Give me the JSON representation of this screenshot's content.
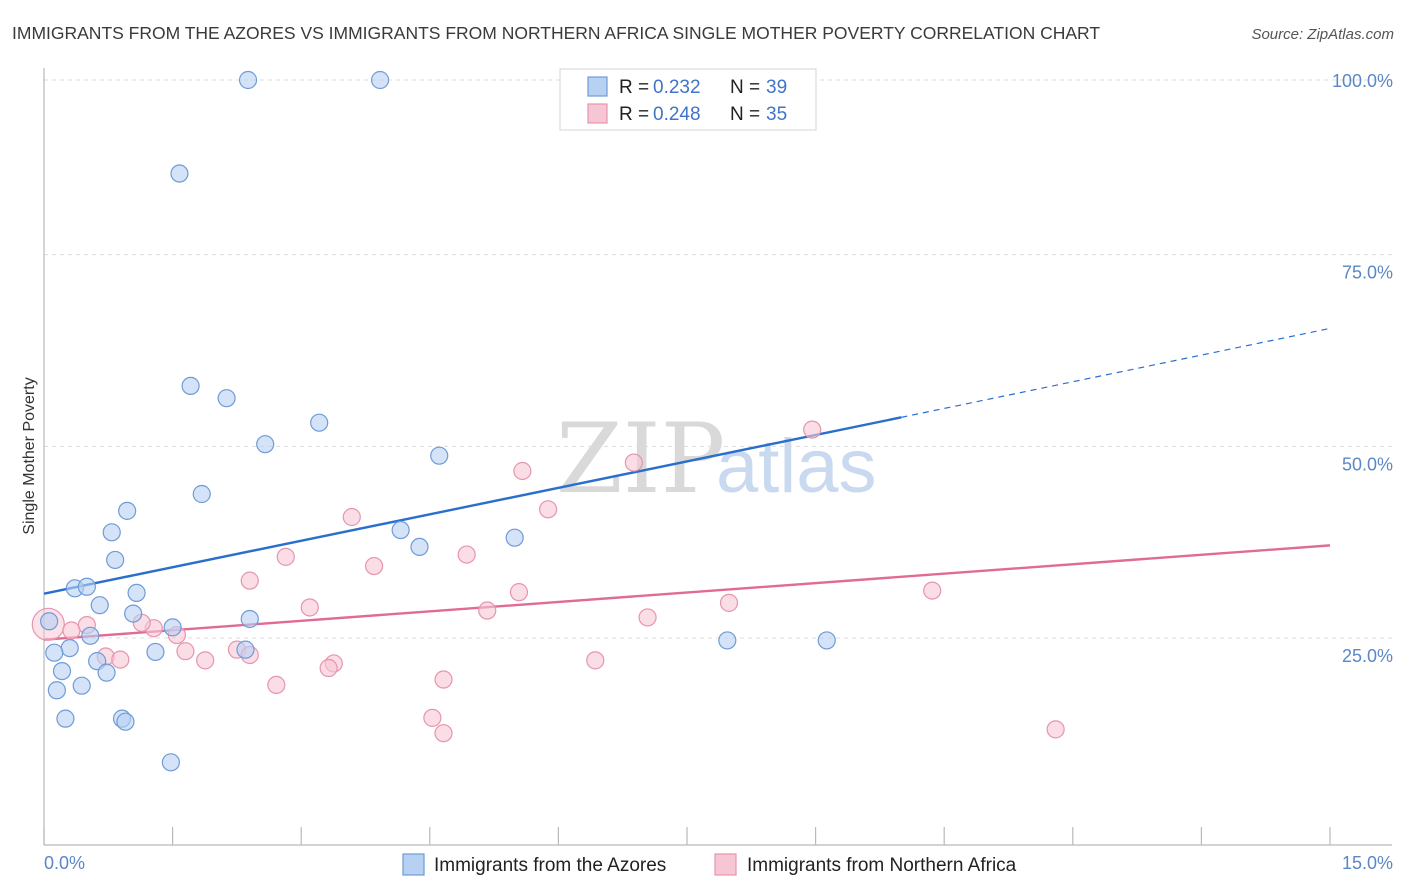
{
  "title": "IMMIGRANTS FROM THE AZORES VS IMMIGRANTS FROM NORTHERN AFRICA SINGLE MOTHER POVERTY CORRELATION CHART",
  "source": "Source: ZipAtlas.com",
  "watermark": {
    "zip": "ZIP",
    "atlas": "atlas"
  },
  "colors": {
    "azores_fill": "#b7d1f2",
    "azores_stroke": "#6f9bd8",
    "azores_line": "#2a6fcc",
    "africa_fill": "#f7c6d4",
    "africa_stroke": "#e794b0",
    "africa_line": "#e06b97"
  },
  "legend": {
    "rows": [
      {
        "r_label": "R = ",
        "r_value": "0.232",
        "n_label": "N = ",
        "n_value": "39"
      },
      {
        "r_label": "R = ",
        "r_value": "0.248",
        "n_label": "N = ",
        "n_value": "35"
      }
    ]
  },
  "chart_data": {
    "type": "scatter",
    "title": "IMMIGRANTS FROM THE AZORES VS IMMIGRANTS FROM NORTHERN AFRICA SINGLE MOTHER POVERTY CORRELATION CHART",
    "xlabel": "",
    "ylabel": "Single Mother Poverty",
    "xlim": [
      0,
      15
    ],
    "ylim": [
      2,
      102
    ],
    "x_tick_labels": [
      "0.0%",
      "15.0%"
    ],
    "y_ticks": [
      25,
      50,
      75,
      100
    ],
    "y_tick_labels": [
      "25.0%",
      "50.0%",
      "75.0%",
      "100.0%"
    ],
    "series": [
      {
        "name": "Immigrants from the Azores",
        "points": [
          [
            2.38,
            100.0
          ],
          [
            3.92,
            100.0
          ],
          [
            1.58,
            87.8
          ],
          [
            1.71,
            60.1
          ],
          [
            2.13,
            58.5
          ],
          [
            3.21,
            55.3
          ],
          [
            2.58,
            52.5
          ],
          [
            4.61,
            51.0
          ],
          [
            1.84,
            46.0
          ],
          [
            0.97,
            43.8
          ],
          [
            0.79,
            41.0
          ],
          [
            4.16,
            41.3
          ],
          [
            5.49,
            40.3
          ],
          [
            4.38,
            39.1
          ],
          [
            0.83,
            37.4
          ],
          [
            0.36,
            33.7
          ],
          [
            0.5,
            33.9
          ],
          [
            1.08,
            33.1
          ],
          [
            0.65,
            31.5
          ],
          [
            1.04,
            30.4
          ],
          [
            2.4,
            29.7
          ],
          [
            0.06,
            29.4
          ],
          [
            1.5,
            28.6
          ],
          [
            0.54,
            27.5
          ],
          [
            0.3,
            25.9
          ],
          [
            2.35,
            25.7
          ],
          [
            0.12,
            25.3
          ],
          [
            1.3,
            25.4
          ],
          [
            0.62,
            24.2
          ],
          [
            0.73,
            22.7
          ],
          [
            0.21,
            22.9
          ],
          [
            7.97,
            26.9
          ],
          [
            9.13,
            26.9
          ],
          [
            0.44,
            21.0
          ],
          [
            0.15,
            20.4
          ],
          [
            0.25,
            16.7
          ],
          [
            0.91,
            16.7
          ],
          [
            0.95,
            16.3
          ],
          [
            1.48,
            11.0
          ]
        ],
        "trend": {
          "x0": 0,
          "y0": 33.0,
          "x1": 10.0,
          "y1": 56.0,
          "x_dash_end": 15.0,
          "y_dash_end": 67.6
        }
      },
      {
        "name": "Immigrants from Northern Africa",
        "points": [
          [
            8.96,
            54.4
          ],
          [
            6.88,
            50.1
          ],
          [
            5.58,
            49.0
          ],
          [
            5.88,
            44.0
          ],
          [
            3.59,
            43.0
          ],
          [
            4.93,
            38.1
          ],
          [
            2.82,
            37.8
          ],
          [
            3.85,
            36.6
          ],
          [
            2.4,
            34.7
          ],
          [
            5.54,
            33.2
          ],
          [
            10.36,
            33.4
          ],
          [
            7.99,
            31.8
          ],
          [
            3.1,
            31.2
          ],
          [
            5.17,
            30.8
          ],
          [
            7.04,
            29.9
          ],
          [
            0.05,
            29.0
          ],
          [
            0.32,
            28.2
          ],
          [
            0.5,
            28.9
          ],
          [
            1.28,
            28.5
          ],
          [
            1.14,
            29.2
          ],
          [
            1.55,
            27.6
          ],
          [
            1.65,
            25.5
          ],
          [
            2.25,
            25.7
          ],
          [
            2.4,
            25.0
          ],
          [
            0.72,
            24.8
          ],
          [
            0.89,
            24.4
          ],
          [
            1.88,
            24.3
          ],
          [
            6.43,
            24.3
          ],
          [
            3.38,
            23.9
          ],
          [
            3.32,
            23.3
          ],
          [
            4.66,
            21.8
          ],
          [
            2.71,
            21.1
          ],
          [
            4.53,
            16.8
          ],
          [
            4.66,
            14.8
          ],
          [
            11.8,
            15.3
          ]
        ],
        "trend": {
          "x0": 0,
          "y0": 27.0,
          "x1": 15.0,
          "y1": 39.3
        }
      }
    ],
    "legend_position": "top-center",
    "grid": true
  },
  "bottom_legend": [
    "Immigrants from the Azores",
    "Immigrants from Northern Africa"
  ]
}
